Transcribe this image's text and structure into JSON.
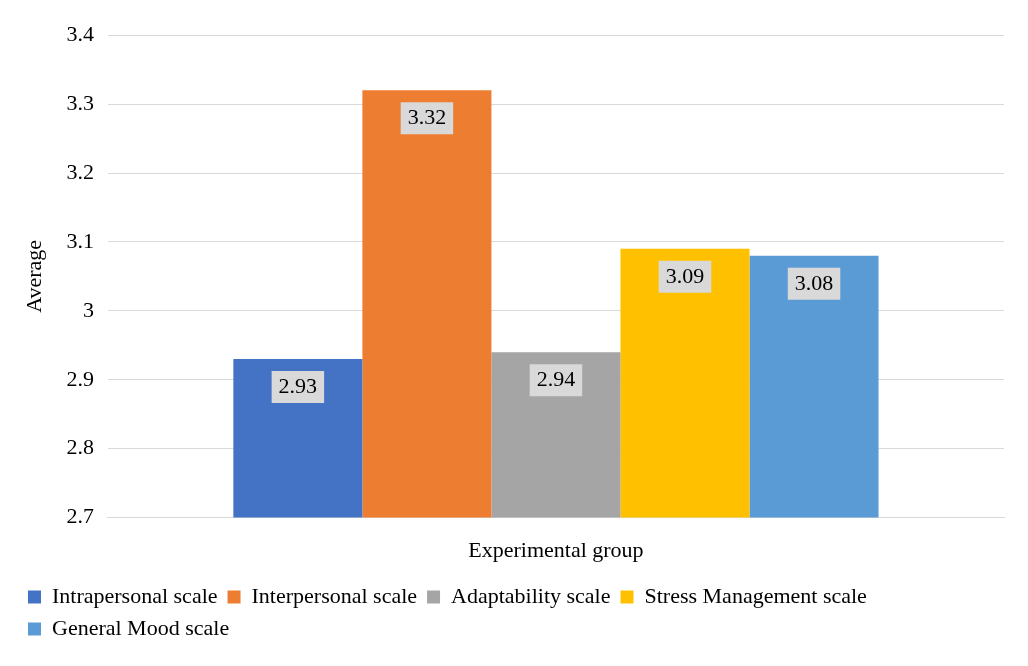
{
  "chart_data": {
    "type": "bar",
    "ylabel": "Average",
    "categories": [
      "Experimental group"
    ],
    "series": [
      {
        "name": "Intrapersonal scale",
        "color": "#4472c4",
        "values": [
          2.93
        ]
      },
      {
        "name": "Interpersonal scale",
        "color": "#ed7d31",
        "values": [
          3.32
        ]
      },
      {
        "name": "Adaptability scale",
        "color": "#a5a5a5",
        "values": [
          2.94
        ]
      },
      {
        "name": "Stress Management scale",
        "color": "#ffc000",
        "values": [
          3.09
        ]
      },
      {
        "name": "General Mood scale",
        "color": "#5b9bd5",
        "values": [
          3.08
        ]
      }
    ],
    "ylim": [
      2.7,
      3.4
    ],
    "yticks": [
      2.7,
      2.8,
      2.9,
      3,
      3.1,
      3.2,
      3.3,
      3.4
    ],
    "grid": "y",
    "legend": "bottom",
    "data_labels": true
  }
}
